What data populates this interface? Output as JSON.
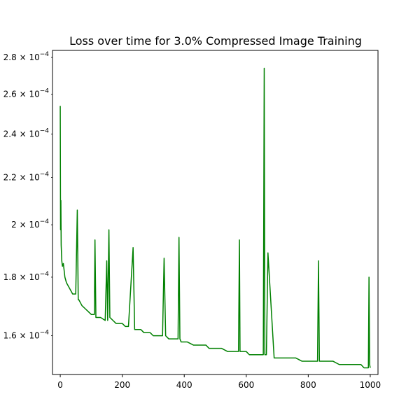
{
  "chart_data": {
    "type": "line",
    "title": "Loss over time for 3.0% Compressed Image Training",
    "xlabel": "",
    "ylabel": "",
    "yscale": "log",
    "xlim": [
      -25,
      1025
    ],
    "ylim": [
      0.000148,
      0.000284
    ],
    "grid": false,
    "x_ticks": [
      {
        "value": 0,
        "label": "0"
      },
      {
        "value": 200,
        "label": "200"
      },
      {
        "value": 400,
        "label": "400"
      },
      {
        "value": 600,
        "label": "600"
      },
      {
        "value": 800,
        "label": "800"
      },
      {
        "value": 1000,
        "label": "1000"
      }
    ],
    "y_ticks": [
      {
        "value": 0.00016,
        "mant": "1.6",
        "exp": "−4"
      },
      {
        "value": 0.00018,
        "mant": "1.8",
        "exp": "−4"
      },
      {
        "value": 0.0002,
        "mant": "2",
        "exp": "−4"
      },
      {
        "value": 0.00022,
        "mant": "2.2",
        "exp": "−4"
      },
      {
        "value": 0.00024,
        "mant": "2.4",
        "exp": "−4"
      },
      {
        "value": 0.00026,
        "mant": "2.6",
        "exp": "−4"
      },
      {
        "value": 0.00028,
        "mant": "2.8",
        "exp": "−4"
      }
    ],
    "series": [
      {
        "color": "#008000",
        "x": [
          0,
          1,
          2,
          3,
          4,
          5,
          7,
          10,
          15,
          20,
          30,
          40,
          50,
          55,
          58,
          60,
          70,
          80,
          90,
          100,
          110,
          112,
          115,
          130,
          145,
          150,
          153,
          157,
          160,
          170,
          180,
          190,
          200,
          210,
          220,
          235,
          240,
          250,
          260,
          270,
          280,
          290,
          300,
          320,
          330,
          335,
          340,
          350,
          360,
          380,
          383,
          386,
          390,
          400,
          410,
          430,
          440,
          450,
          460,
          470,
          480,
          490,
          500,
          510,
          520,
          540,
          560,
          575,
          578,
          580,
          590,
          600,
          610,
          615,
          620,
          640,
          650,
          655,
          658,
          660,
          665,
          670,
          690,
          700,
          720,
          740,
          755,
          760,
          780,
          800,
          810,
          820,
          830,
          833,
          836,
          840,
          860,
          880,
          900,
          920,
          930,
          940,
          950,
          960,
          970,
          980,
          990,
          994,
          996,
          998,
          1000
        ],
        "y": [
          0.000254,
          0.000198,
          0.00021,
          0.000192,
          0.000189,
          0.000186,
          0.000184,
          0.000185,
          0.00018,
          0.000178,
          0.000176,
          0.000174,
          0.000174,
          0.000206,
          0.000172,
          0.000172,
          0.00017,
          0.000169,
          0.000168,
          0.000167,
          0.000167,
          0.000194,
          0.000166,
          0.000166,
          0.000165,
          0.000186,
          0.000165,
          0.000198,
          0.000166,
          0.000165,
          0.000164,
          0.000164,
          0.000164,
          0.000163,
          0.000163,
          0.000191,
          0.000162,
          0.000162,
          0.000162,
          0.000161,
          0.000161,
          0.000161,
          0.00016,
          0.00016,
          0.00016,
          0.000187,
          0.00016,
          0.000159,
          0.000159,
          0.000159,
          0.000195,
          0.000159,
          0.000158,
          0.000158,
          0.000158,
          0.000157,
          0.000157,
          0.000157,
          0.000157,
          0.000157,
          0.000156,
          0.000156,
          0.000156,
          0.000156,
          0.000156,
          0.000155,
          0.000155,
          0.000155,
          0.000194,
          0.000155,
          0.000155,
          0.000155,
          0.000154,
          0.000154,
          0.000154,
          0.000154,
          0.000154,
          0.000154,
          0.000274,
          0.000154,
          0.000154,
          0.000189,
          0.000153,
          0.000153,
          0.000153,
          0.000153,
          0.000153,
          0.000153,
          0.000152,
          0.000152,
          0.000152,
          0.000152,
          0.000152,
          0.000186,
          0.000152,
          0.000152,
          0.000152,
          0.000152,
          0.000151,
          0.000151,
          0.000151,
          0.000151,
          0.000151,
          0.000151,
          0.000151,
          0.00015,
          0.00015,
          0.00015,
          0.00018,
          0.000151,
          0.00015
        ]
      }
    ]
  }
}
